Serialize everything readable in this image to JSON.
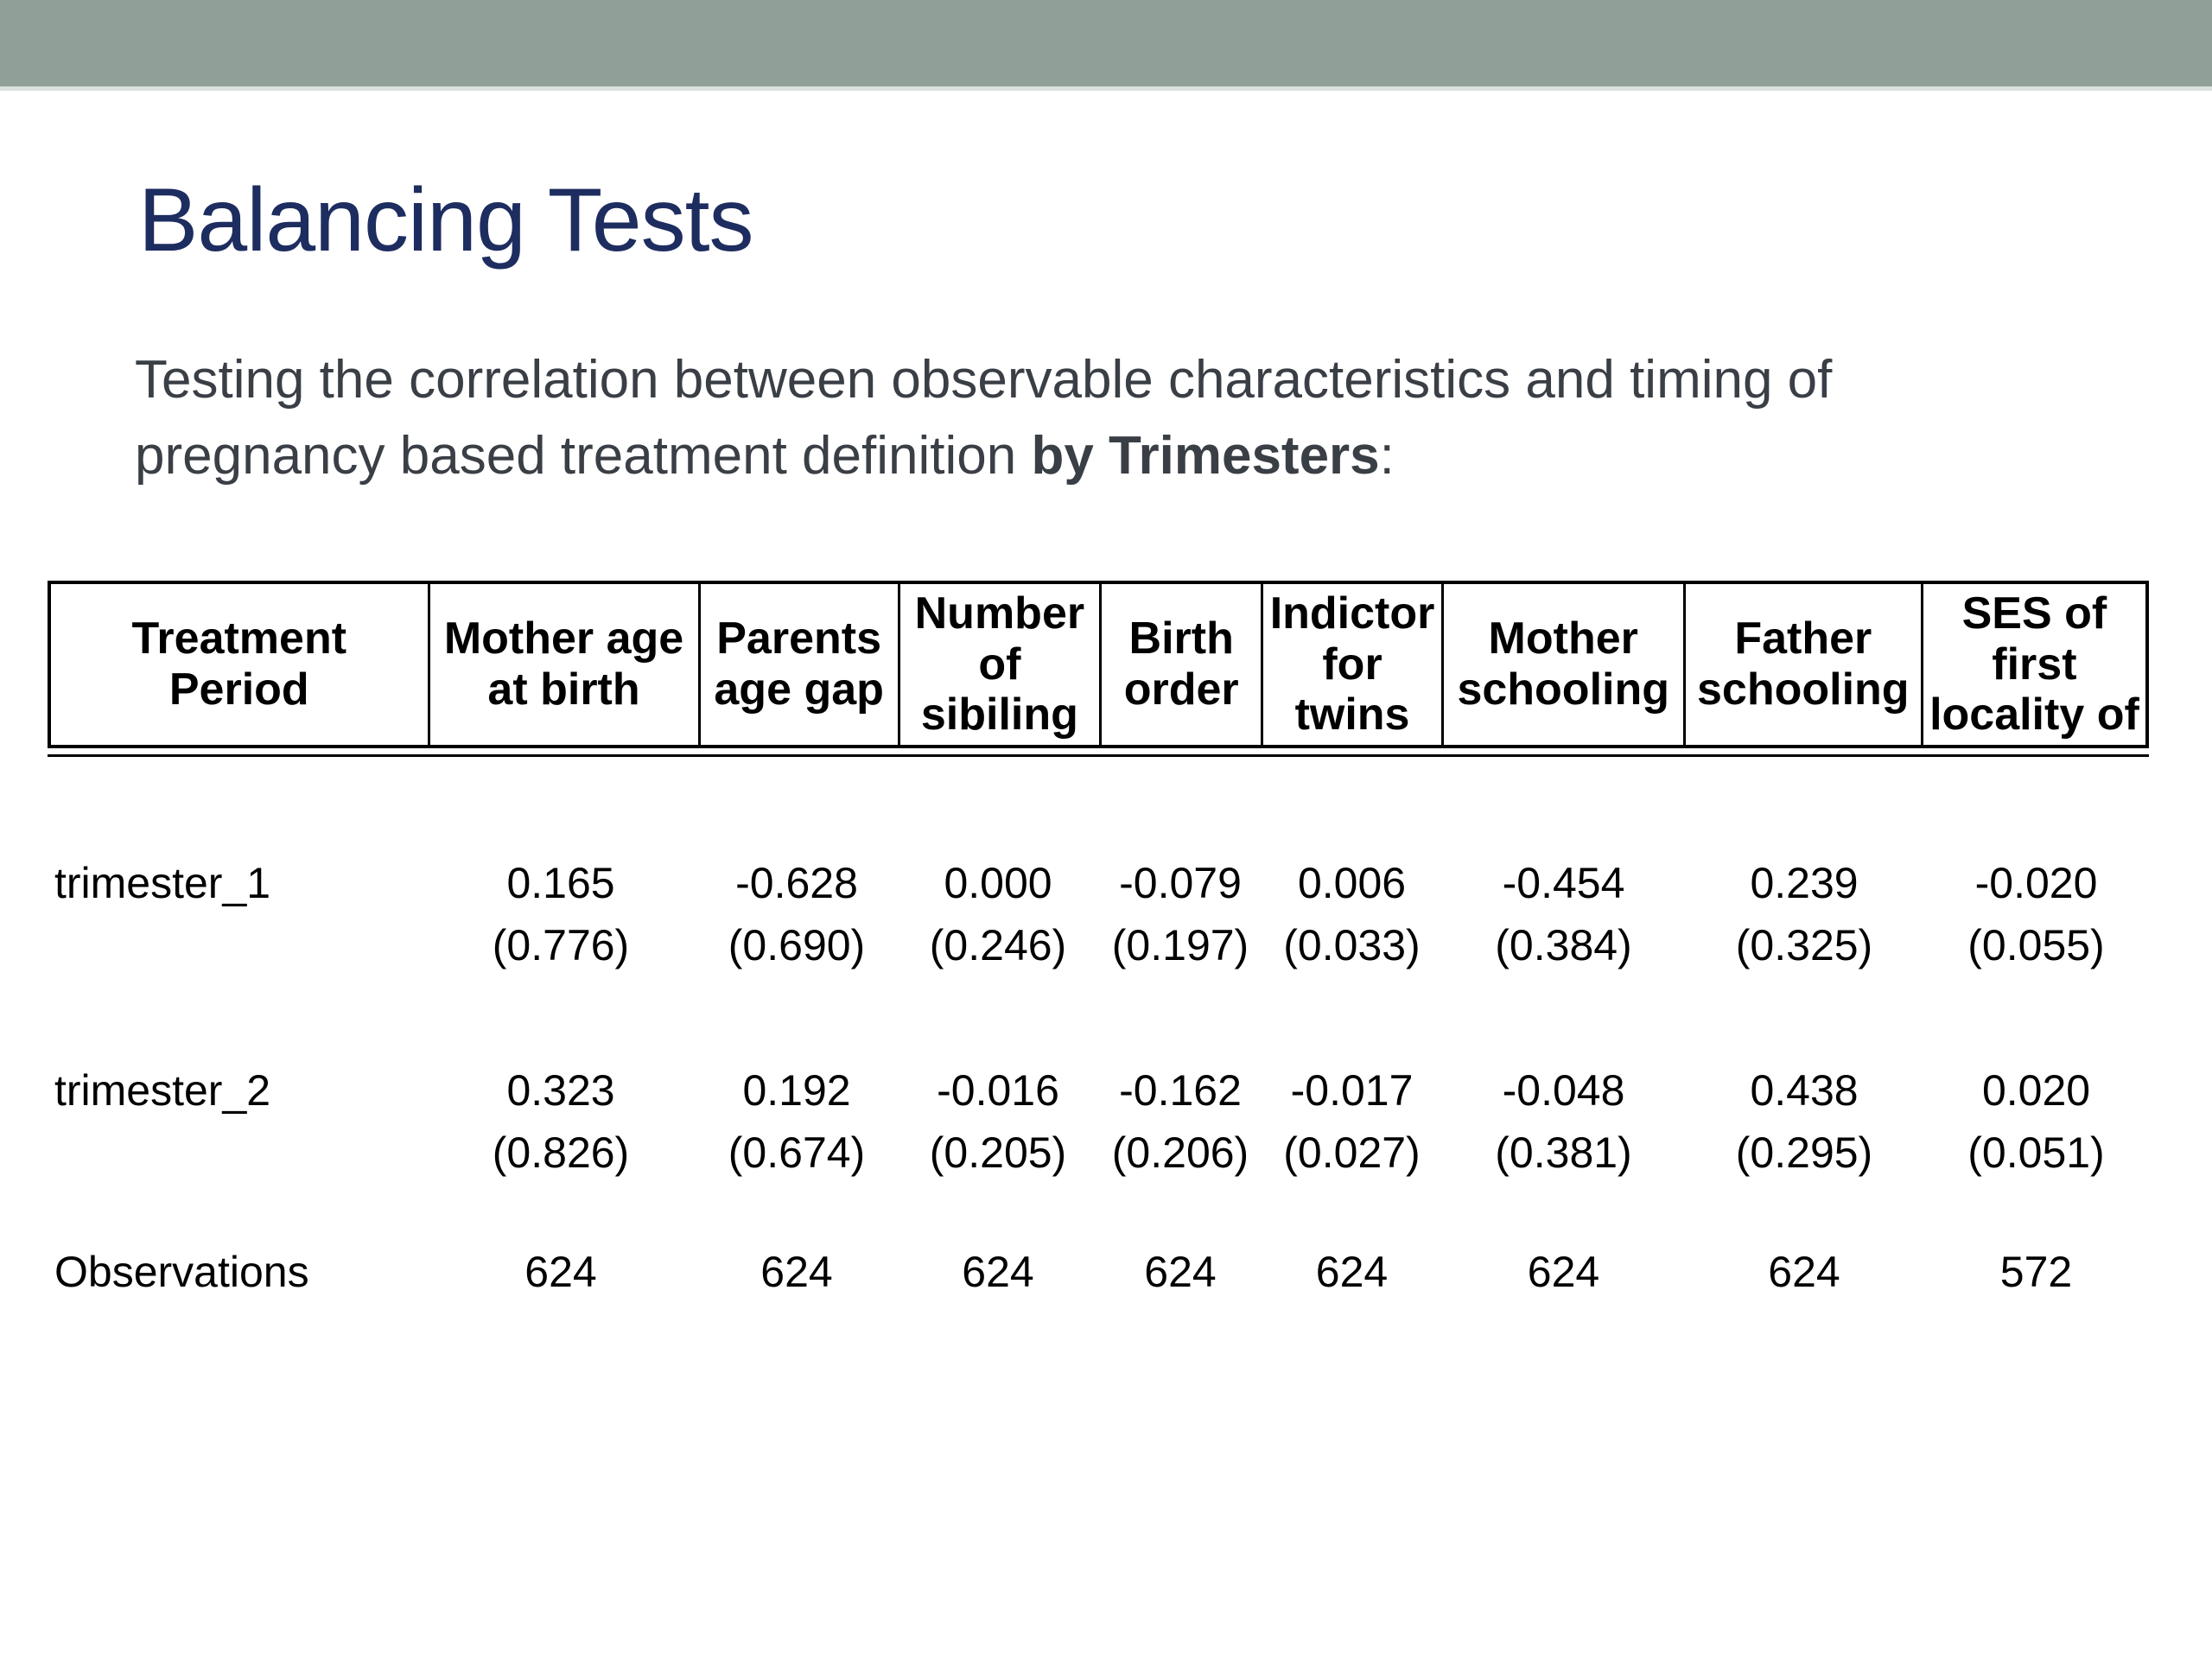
{
  "slide": {
    "title": "Balancing Tests",
    "subtitle": {
      "line1": "Testing the correlation between observable characteristics and timing of",
      "line2_prefix": "pregnancy based treatment definition ",
      "line2_bold": "by Trimesters",
      "line2_suffix": ":"
    }
  },
  "colors": {
    "top_bar": "#90a098",
    "top_bar_edge": "#d9e2dc",
    "title_text": "#1e2d60",
    "subtitle_text": "#3a3f46",
    "table_text": "#000000"
  },
  "table": {
    "columns": [
      "Treatment\nPeriod",
      "Mother age\nat birth",
      "Parents\nage gap",
      "Number\nof\nsibiling",
      "Birth\norder",
      "Indictor\nfor\ntwins",
      "Mother\nschooling",
      "Father\nschooling",
      "SES of\nfirst\nlocality of"
    ],
    "rows": [
      {
        "label": "trimester_1",
        "values": [
          "0.165",
          "-0.628",
          "0.000",
          "-0.079",
          "0.006",
          "-0.454",
          "0.239",
          "-0.020"
        ],
        "se": [
          "(0.776)",
          "(0.690)",
          "(0.246)",
          "(0.197)",
          "(0.033)",
          "(0.384)",
          "(0.325)",
          "(0.055)"
        ]
      },
      {
        "label": "trimester_2",
        "values": [
          "0.323",
          "0.192",
          "-0.016",
          "-0.162",
          "-0.017",
          "-0.048",
          "0.438",
          "0.020"
        ],
        "se": [
          "(0.826)",
          "(0.674)",
          "(0.205)",
          "(0.206)",
          "(0.027)",
          "(0.381)",
          "(0.295)",
          "(0.051)"
        ]
      }
    ],
    "observations": {
      "label": "Observations",
      "values": [
        "624",
        "624",
        "624",
        "624",
        "624",
        "624",
        "624",
        "572"
      ]
    }
  }
}
